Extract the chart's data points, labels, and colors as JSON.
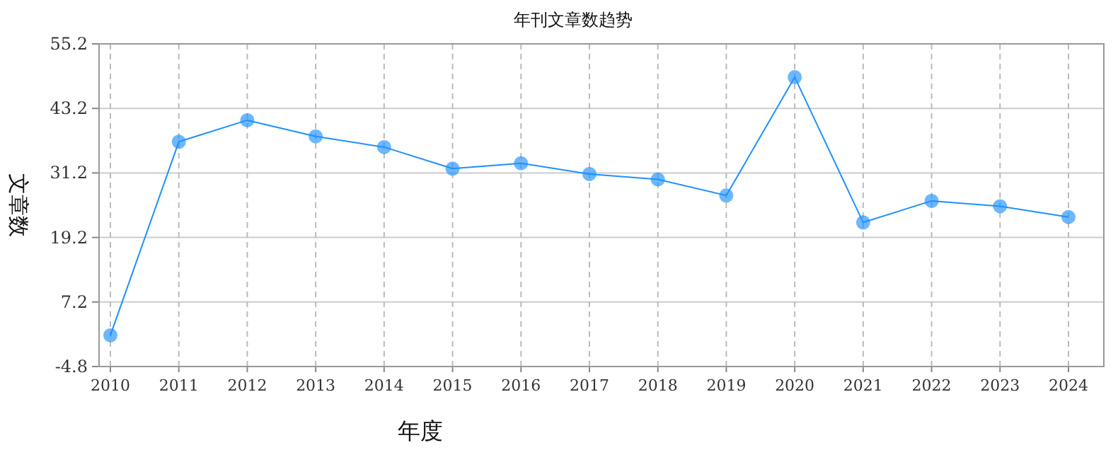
{
  "chart_data": {
    "type": "line",
    "title": "年刊文章数趋势",
    "xlabel": "年度",
    "ylabel": "文章数",
    "categories": [
      "2010",
      "2011",
      "2012",
      "2013",
      "2014",
      "2015",
      "2016",
      "2017",
      "2018",
      "2019",
      "2020",
      "2021",
      "2022",
      "2023",
      "2024"
    ],
    "series": [
      {
        "color": "#1e90ff",
        "values": [
          1,
          37,
          41,
          38,
          36,
          32,
          33,
          31,
          30,
          27,
          49,
          22,
          26,
          25,
          23
        ]
      }
    ],
    "ylim": [
      -4.8,
      55.2
    ],
    "yticks": [
      -4.8,
      7.2,
      19.2,
      31.2,
      43.2,
      55.2
    ],
    "grid": true,
    "marker": "circle"
  }
}
